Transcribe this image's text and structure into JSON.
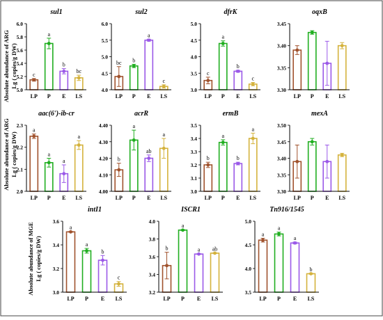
{
  "figure": {
    "row_ylabels": [
      [
        "Absolute abundance of ARG",
        "Lg ( copies/g DW)"
      ],
      [
        "Absolute abundance of ARG",
        "Lg ( copies/g DW)"
      ],
      [
        "Absolute abundance of MGE",
        "Lg ( copies/g DW)"
      ]
    ]
  },
  "chart_data": [
    {
      "type": "bar",
      "title": "sul1",
      "categories": [
        "LP",
        "P",
        "E",
        "LS"
      ],
      "values": [
        5.15,
        5.7,
        5.28,
        5.18
      ],
      "errors": [
        0.02,
        0.08,
        0.04,
        0.04
      ],
      "letters": [
        "c",
        "a",
        "b",
        "bc"
      ],
      "ylim": [
        5.0,
        6.0
      ],
      "yticks": [
        5.0,
        5.2,
        5.4,
        5.6,
        5.8,
        6.0
      ],
      "colors": [
        "#a0522d",
        "#1fae1f",
        "#9b59e8",
        "#d4b23c"
      ]
    },
    {
      "type": "bar",
      "title": "sul2",
      "categories": [
        "LP",
        "P",
        "E",
        "LS"
      ],
      "values": [
        4.4,
        4.72,
        5.5,
        4.1
      ],
      "errors": [
        0.3,
        0.05,
        0.03,
        0.05
      ],
      "letters": [
        "bc",
        "b",
        "a",
        "c"
      ],
      "ylim": [
        4.0,
        6.0
      ],
      "yticks": [
        4.0,
        4.5,
        5.0,
        5.5,
        6.0
      ],
      "colors": [
        "#a0522d",
        "#1fae1f",
        "#9b59e8",
        "#d4b23c"
      ]
    },
    {
      "type": "bar",
      "title": "dfrK",
      "categories": [
        "LP",
        "P",
        "E",
        "LS"
      ],
      "values": [
        3.28,
        4.4,
        3.56,
        3.17
      ],
      "errors": [
        0.1,
        0.08,
        0.03,
        0.05
      ],
      "letters": [
        "c",
        "a",
        "b",
        "c"
      ],
      "ylim": [
        3.0,
        5.0
      ],
      "yticks": [
        3.0,
        3.5,
        4.0,
        4.5,
        5.0
      ],
      "colors": [
        "#a0522d",
        "#1fae1f",
        "#9b59e8",
        "#d4b23c"
      ]
    },
    {
      "type": "bar",
      "title": "oqxB",
      "categories": [
        "LP",
        "P",
        "E",
        "LS"
      ],
      "values": [
        3.39,
        3.43,
        3.36,
        3.4
      ],
      "errors": [
        0.01,
        0.004,
        0.05,
        0.007
      ],
      "letters": [
        "",
        "",
        "",
        ""
      ],
      "ylim": [
        3.3,
        3.45
      ],
      "yticks": [
        3.3,
        3.35,
        3.4,
        3.45
      ],
      "colors": [
        "#a0522d",
        "#1fae1f",
        "#9b59e8",
        "#d4b23c"
      ]
    },
    {
      "type": "bar",
      "title": "aac(6')-ib-cr",
      "categories": [
        "LP",
        "P",
        "E",
        "LS"
      ],
      "values": [
        2.25,
        2.13,
        2.08,
        2.21
      ],
      "errors": [
        0.01,
        0.02,
        0.04,
        0.02
      ],
      "letters": [
        "a",
        "a",
        "a",
        "a"
      ],
      "ylim": [
        2.0,
        2.3
      ],
      "yticks": [
        2.0,
        2.1,
        2.2,
        2.3
      ],
      "colors": [
        "#a0522d",
        "#1fae1f",
        "#9b59e8",
        "#d4b23c"
      ]
    },
    {
      "type": "bar",
      "title": "acrR",
      "categories": [
        "LP",
        "P",
        "E",
        "LS"
      ],
      "values": [
        4.13,
        4.31,
        4.2,
        4.26
      ],
      "errors": [
        0.04,
        0.06,
        0.02,
        0.06
      ],
      "letters": [
        "b",
        "a",
        "ab",
        "a"
      ],
      "ylim": [
        4.0,
        4.4
      ],
      "yticks": [
        4.0,
        4.1,
        4.2,
        4.3,
        4.4
      ],
      "colors": [
        "#a0522d",
        "#1fae1f",
        "#9b59e8",
        "#d4b23c"
      ]
    },
    {
      "type": "bar",
      "title": "ermB",
      "categories": [
        "LP",
        "P",
        "E",
        "LS"
      ],
      "values": [
        3.2,
        3.37,
        3.21,
        3.4
      ],
      "errors": [
        0.02,
        0.02,
        0.01,
        0.04
      ],
      "letters": [
        "b",
        "a",
        "b",
        "a"
      ],
      "ylim": [
        3.0,
        3.5
      ],
      "yticks": [
        3.0,
        3.1,
        3.2,
        3.3,
        3.4,
        3.5
      ],
      "colors": [
        "#a0522d",
        "#1fae1f",
        "#9b59e8",
        "#d4b23c"
      ]
    },
    {
      "type": "bar",
      "title": "mexA",
      "categories": [
        "LP",
        "P",
        "E",
        "LS"
      ],
      "values": [
        3.39,
        3.45,
        3.39,
        3.41
      ],
      "errors": [
        0.05,
        0.01,
        0.05,
        0.005
      ],
      "letters": [
        "",
        "",
        "",
        ""
      ],
      "ylim": [
        3.3,
        3.5
      ],
      "yticks": [
        3.3,
        3.35,
        3.4,
        3.45,
        3.5
      ],
      "colors": [
        "#a0522d",
        "#1fae1f",
        "#9b59e8",
        "#d4b23c"
      ]
    },
    {
      "type": "bar",
      "title": "intI1",
      "categories": [
        "LP",
        "P",
        "E",
        "LS"
      ],
      "values": [
        3.51,
        3.35,
        3.27,
        3.07
      ],
      "errors": [
        0.004,
        0.02,
        0.04,
        0.02
      ],
      "letters": [
        "a",
        "a",
        "b",
        "c"
      ],
      "ylim": [
        3.0,
        3.6
      ],
      "yticks": [
        3.0,
        3.2,
        3.4,
        3.6
      ],
      "colors": [
        "#a0522d",
        "#1fae1f",
        "#9b59e8",
        "#d4b23c"
      ]
    },
    {
      "type": "bar",
      "title": "ISCR1",
      "categories": [
        "LP",
        "P",
        "E",
        "LS"
      ],
      "values": [
        3.5,
        3.9,
        3.63,
        3.64
      ],
      "errors": [
        0.15,
        0.005,
        0.005,
        0.005
      ],
      "letters": [
        "b",
        "a",
        "a",
        "ab"
      ],
      "ylim": [
        3.2,
        4.0
      ],
      "yticks": [
        3.2,
        3.4,
        3.6,
        3.8,
        4.0
      ],
      "colors": [
        "#a0522d",
        "#1fae1f",
        "#9b59e8",
        "#d4b23c"
      ]
    },
    {
      "type": "bar",
      "title": "Tn916/1545",
      "categories": [
        "LP",
        "P",
        "E",
        "LS"
      ],
      "values": [
        4.6,
        4.73,
        4.54,
        3.89
      ],
      "errors": [
        0.04,
        0.04,
        0.02,
        0.01
      ],
      "letters": [
        "a",
        "a",
        "a",
        "b"
      ],
      "ylim": [
        3.5,
        5.0
      ],
      "yticks": [
        3.5,
        4.0,
        4.5,
        5.0
      ],
      "colors": [
        "#a0522d",
        "#1fae1f",
        "#9b59e8",
        "#d4b23c"
      ]
    }
  ]
}
